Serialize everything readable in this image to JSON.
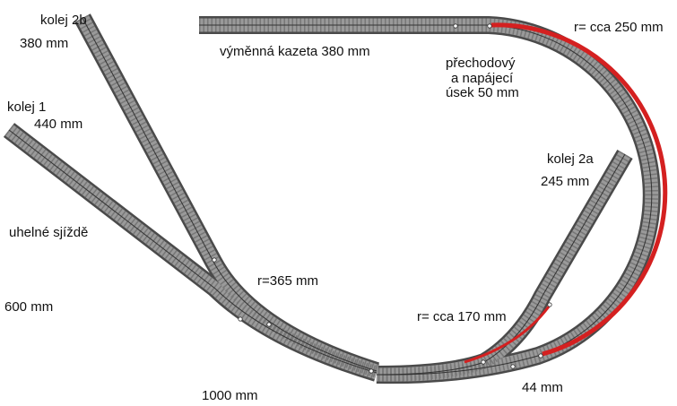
{
  "labels": {
    "kolej_2b": "kolej 2b",
    "kolej_2b_length": "380 mm",
    "cassette": "výměnná kazeta 380 mm",
    "transition_1": "přechodový",
    "transition_2": "a napájecí",
    "transition_3": "úsek 50 mm",
    "radius_large": "r= cca 250 mm",
    "kolej_1": "kolej 1",
    "kolej_1_length": "440 mm",
    "kolej_2a": "kolej 2a",
    "kolej_2a_length": "245 mm",
    "siding": "uhelné sjíždě",
    "radius_365": "r=365 mm",
    "siding_length": "600 mm",
    "radius_small": "r= cca 170 mm",
    "bottom_length": "1000 mm",
    "short_length": "44 mm"
  }
}
